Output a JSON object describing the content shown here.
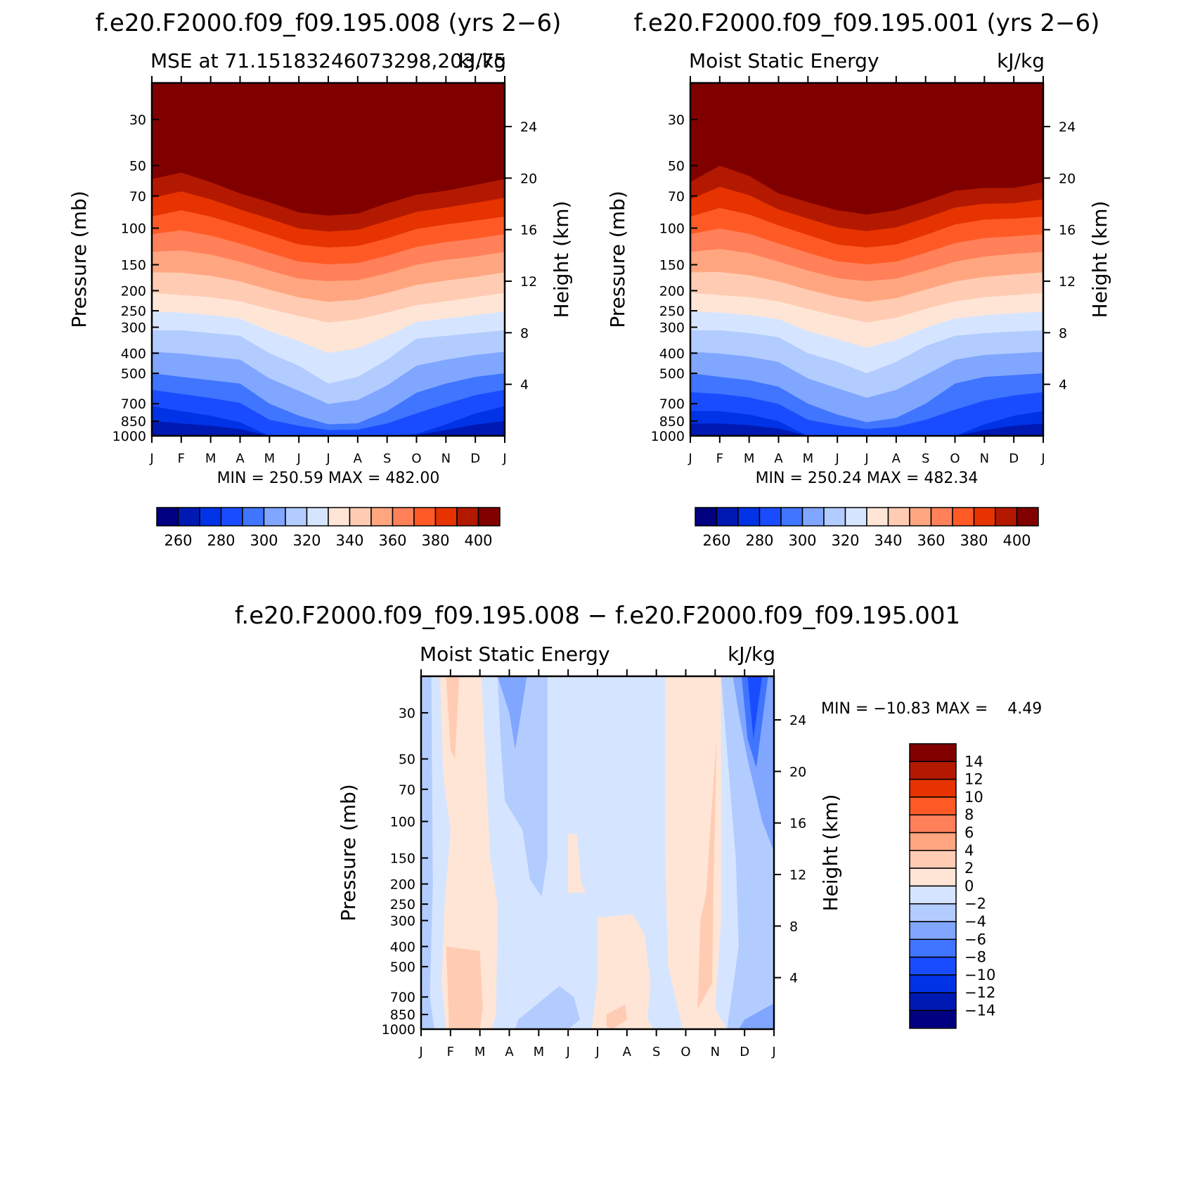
{
  "figure": {
    "colors": {
      "absolute_levels": [
        "#000080",
        "#0019b3",
        "#0033e6",
        "#1a4cff",
        "#4075ff",
        "#80a6ff",
        "#b3ccff",
        "#d6e5ff",
        "#ffe5d6",
        "#ffccb3",
        "#ffa680",
        "#ff8059",
        "#ff5a26",
        "#e63300",
        "#b31900",
        "#800000"
      ],
      "diff_levels": [
        "#000080",
        "#0019b3",
        "#0033e6",
        "#1a4cff",
        "#4075ff",
        "#80a6ff",
        "#b3ccff",
        "#d6e5ff",
        "#ffe5d6",
        "#ffccb3",
        "#ffa680",
        "#ff8059",
        "#ff5a26",
        "#e63300",
        "#b31900",
        "#800000"
      ]
    }
  },
  "chart_data": [
    {
      "id": "panel_case",
      "type": "heatmap",
      "title": "f.e20.F2000.f09_f09.195.008 (yrs 2−6)",
      "subtitle_left": "MSE at 71.15183246073298,203.75",
      "subtitle_right": "kJ/kg",
      "xlabel": "",
      "ylabel": "Pressure (mb)",
      "ylabel_right": "Height (km)",
      "x": [
        "J",
        "F",
        "M",
        "A",
        "M",
        "J",
        "J",
        "A",
        "S",
        "O",
        "N",
        "D",
        "J"
      ],
      "y_pressure_ticks": [
        30,
        50,
        70,
        100,
        150,
        200,
        250,
        300,
        400,
        500,
        700,
        850,
        1000
      ],
      "y_height_ticks": [
        24,
        20,
        16,
        12,
        8,
        4
      ],
      "ylim": [
        1000,
        20
      ],
      "y_scale": "log",
      "stats_text": "MIN = 250.59 MAX = 482.00",
      "min": 250.59,
      "max": 482.0,
      "colorbar_labels": [
        "260",
        "280",
        "300",
        "320",
        "340",
        "360",
        "380",
        "400"
      ],
      "colorbar_levels": [
        260,
        270,
        280,
        290,
        300,
        310,
        320,
        330,
        340,
        350,
        360,
        370,
        380,
        390,
        400
      ],
      "contour_levels": [
        260,
        280,
        300,
        320,
        340,
        360,
        380,
        400
      ],
      "contour_pressure": [
        [
          1000,
          1000,
          1000,
          1000,
          1000,
          1000,
          1000,
          1000,
          1000,
          1000,
          1000,
          1000,
          1000
        ],
        [
          720,
          760,
          800,
          860,
          1000,
          1000,
          1000,
          1000,
          1000,
          980,
          880,
          780,
          720
        ],
        [
          500,
          520,
          540,
          560,
          700,
          800,
          880,
          870,
          760,
          620,
          560,
          520,
          500
        ],
        [
          310,
          310,
          320,
          330,
          400,
          460,
          560,
          520,
          430,
          340,
          330,
          320,
          310
        ],
        [
          205,
          210,
          215,
          225,
          245,
          265,
          285,
          275,
          255,
          235,
          225,
          215,
          205
        ],
        [
          130,
          128,
          134,
          145,
          160,
          175,
          180,
          178,
          165,
          150,
          142,
          137,
          130
        ],
        [
          88,
          82,
          88,
          97,
          108,
          120,
          124,
          122,
          112,
          101,
          96,
          92,
          88
        ],
        [
          58,
          54,
          60,
          68,
          75,
          84,
          87,
          85,
          76,
          69,
          66,
          62,
          58
        ]
      ]
    },
    {
      "id": "panel_control",
      "type": "heatmap",
      "title": "f.e20.F2000.f09_f09.195.001 (yrs 2−6)",
      "subtitle_left": "Moist Static Energy",
      "subtitle_right": "kJ/kg",
      "xlabel": "",
      "ylabel": "Pressure (mb)",
      "ylabel_right": "Height (km)",
      "x": [
        "J",
        "F",
        "M",
        "A",
        "M",
        "J",
        "J",
        "A",
        "S",
        "O",
        "N",
        "D",
        "J"
      ],
      "y_pressure_ticks": [
        30,
        50,
        70,
        100,
        150,
        200,
        250,
        300,
        400,
        500,
        700,
        850,
        1000
      ],
      "y_height_ticks": [
        24,
        20,
        16,
        12,
        8,
        4
      ],
      "ylim": [
        1000,
        20
      ],
      "y_scale": "log",
      "stats_text": "MIN = 250.24 MAX = 482.34",
      "min": 250.24,
      "max": 482.34,
      "colorbar_labels": [
        "260",
        "280",
        "300",
        "320",
        "340",
        "360",
        "380",
        "400"
      ],
      "colorbar_levels": [
        260,
        270,
        280,
        290,
        300,
        310,
        320,
        330,
        340,
        350,
        360,
        370,
        380,
        390,
        400
      ],
      "contour_levels": [
        260,
        280,
        300,
        320,
        340,
        360,
        380,
        400
      ],
      "contour_pressure": [
        [
          1000,
          1000,
          1000,
          1000,
          1000,
          1000,
          1000,
          1000,
          1000,
          1000,
          1000,
          1000,
          1000
        ],
        [
          760,
          760,
          790,
          850,
          1000,
          1000,
          1000,
          1000,
          1000,
          1000,
          880,
          800,
          760
        ],
        [
          500,
          520,
          540,
          580,
          700,
          790,
          860,
          820,
          700,
          560,
          520,
          510,
          500
        ],
        [
          310,
          310,
          320,
          335,
          400,
          440,
          500,
          440,
          370,
          330,
          320,
          315,
          310
        ],
        [
          205,
          210,
          215,
          225,
          245,
          265,
          285,
          270,
          245,
          225,
          215,
          210,
          205
        ],
        [
          130,
          126,
          132,
          145,
          160,
          174,
          180,
          175,
          160,
          145,
          137,
          133,
          130
        ],
        [
          88,
          80,
          86,
          97,
          108,
          120,
          124,
          120,
          108,
          96,
          91,
          90,
          88
        ],
        [
          60,
          50,
          56,
          68,
          75,
          82,
          86,
          82,
          74,
          66,
          64,
          64,
          60
        ]
      ]
    },
    {
      "id": "panel_difference",
      "type": "heatmap",
      "title": "f.e20.F2000.f09_f09.195.008 − f.e20.F2000.f09_f09.195.001",
      "subtitle_left": "Moist Static Energy",
      "subtitle_right": "kJ/kg",
      "xlabel": "",
      "ylabel": "Pressure (mb)",
      "ylabel_right": "Height (km)",
      "x": [
        "J",
        "F",
        "M",
        "A",
        "M",
        "J",
        "J",
        "A",
        "S",
        "O",
        "N",
        "D",
        "J"
      ],
      "y_pressure_ticks": [
        30,
        50,
        70,
        100,
        150,
        200,
        250,
        300,
        400,
        500,
        700,
        850,
        1000
      ],
      "y_height_ticks": [
        24,
        20,
        16,
        12,
        8,
        4
      ],
      "ylim": [
        1000,
        20
      ],
      "y_scale": "log",
      "stats_text": "MIN = −10.83 MAX =    4.49",
      "min": -10.83,
      "max": 4.49,
      "colorbar_labels": [
        "14",
        "12",
        "10",
        "8",
        "6",
        "4",
        "2",
        "0",
        "−2",
        "−4",
        "−6",
        "−8",
        "−10",
        "−12",
        "−14"
      ],
      "colorbar_levels": [
        14,
        12,
        10,
        8,
        6,
        4,
        2,
        0,
        -2,
        -4,
        -6,
        -8,
        -10,
        -12,
        -14
      ],
      "month_anomaly": [
        {
          "month_index": 0,
          "value_range": [
            -4,
            -2
          ],
          "note": ""
        },
        {
          "month_index": 1,
          "value_range": [
            0,
            4
          ]
        },
        {
          "month_index": 3,
          "value_range": [
            -6,
            -2
          ]
        },
        {
          "month_index": 5,
          "value_range": [
            0,
            2
          ]
        },
        {
          "month_index": 7,
          "value_range": [
            0,
            4
          ]
        },
        {
          "month_index": 9,
          "value_range": [
            0,
            4
          ]
        },
        {
          "month_index": 11,
          "value_range": [
            -10,
            -2
          ]
        }
      ]
    }
  ]
}
